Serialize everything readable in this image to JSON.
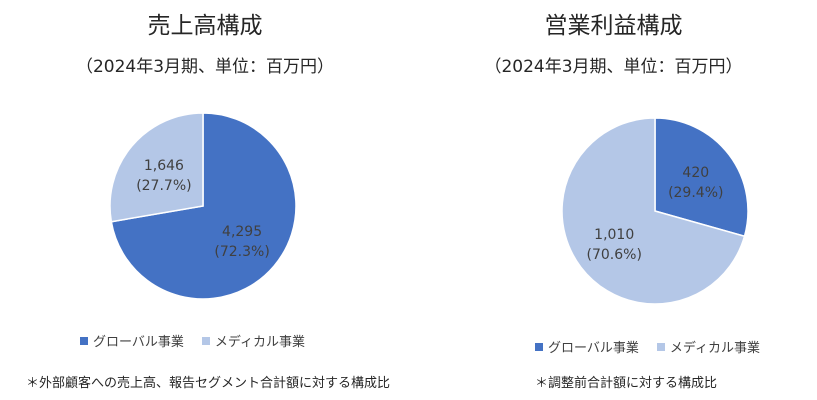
{
  "colors": {
    "global": "#4472c4",
    "medical": "#b4c7e7",
    "border": "#ffffff"
  },
  "legend": {
    "global": "グローバル事業",
    "medical": "メディカル事業"
  },
  "chart_data": [
    {
      "type": "pie",
      "title": "売上高構成",
      "subtitle": "（2024年3月期、単位：百万円）",
      "slices": [
        {
          "name": "グローバル事業",
          "value": 4295,
          "label": "4,295",
          "pct": "(72.3%)",
          "color": "#4472c4"
        },
        {
          "name": "メディカル事業",
          "value": 1646,
          "label": "1,646",
          "pct": "(27.7%)",
          "color": "#b4c7e7"
        }
      ],
      "legend_position": "bottom",
      "footnote": "＊外部顧客への売上高、報告セグメント合計額に対する構成比"
    },
    {
      "type": "pie",
      "title": "営業利益構成",
      "subtitle": "（2024年3月期、単位：百万円）",
      "slices": [
        {
          "name": "グローバル事業",
          "value": 420,
          "label": "420",
          "pct": "(29.4%)",
          "color": "#4472c4"
        },
        {
          "name": "メディカル事業",
          "value": 1010,
          "label": "1,010",
          "pct": "(70.6%)",
          "color": "#b4c7e7"
        }
      ],
      "legend_position": "bottom",
      "footnote": "＊調整前合計額に対する構成比"
    }
  ]
}
